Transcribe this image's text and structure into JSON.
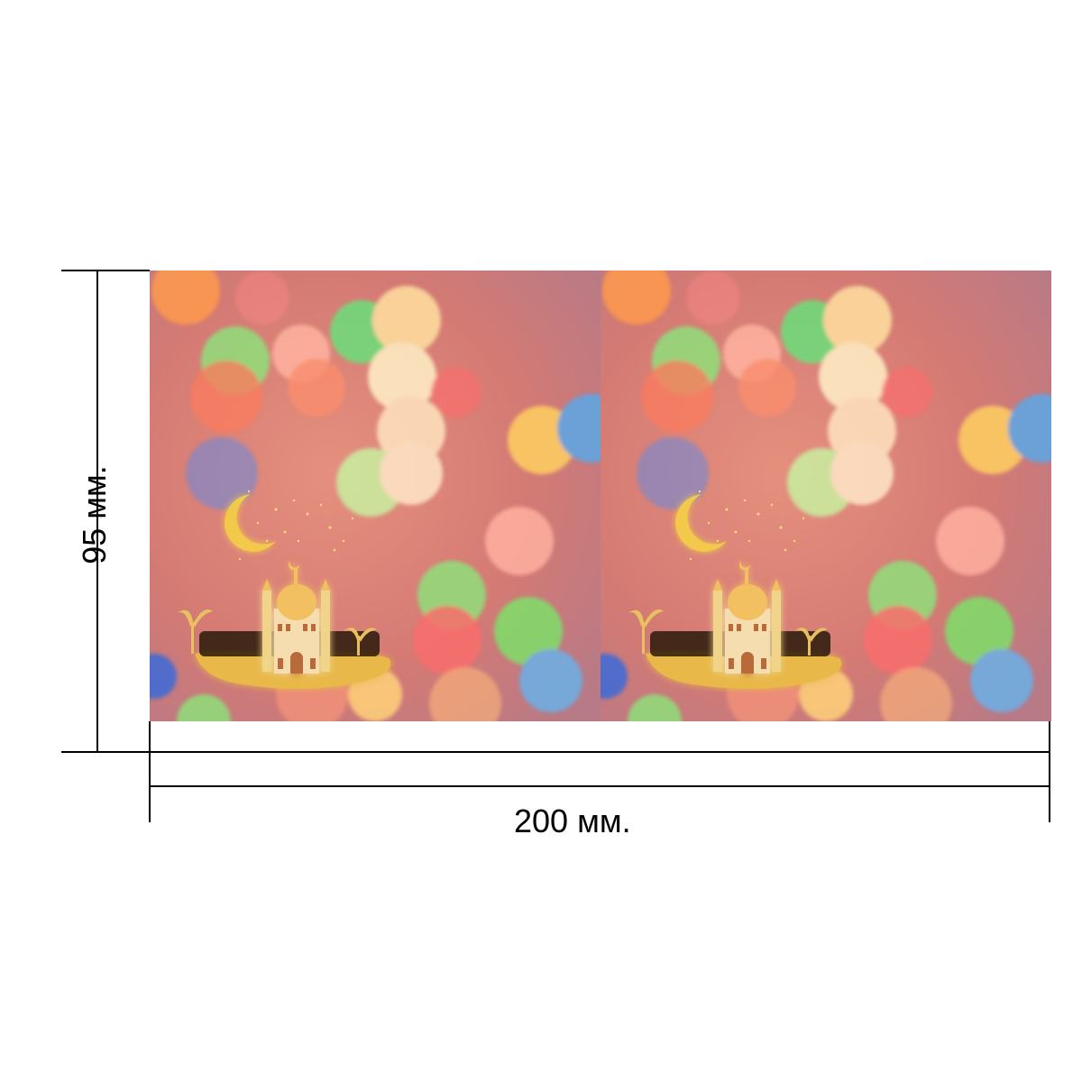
{
  "dimensions": {
    "width_label": "200 мм.",
    "height_label": "95 мм.",
    "width_mm": 200,
    "height_mm": 95
  },
  "product": {
    "panel_count": 2,
    "background_color": "#d9786f",
    "accent_gold": "#f2c94c",
    "bokeh_colors": [
      "#ff9a4d",
      "#7ee06b",
      "#fff1b8",
      "#ff6b6b",
      "#5aa8e8",
      "#ffd27a",
      "#ffb0a0"
    ]
  }
}
